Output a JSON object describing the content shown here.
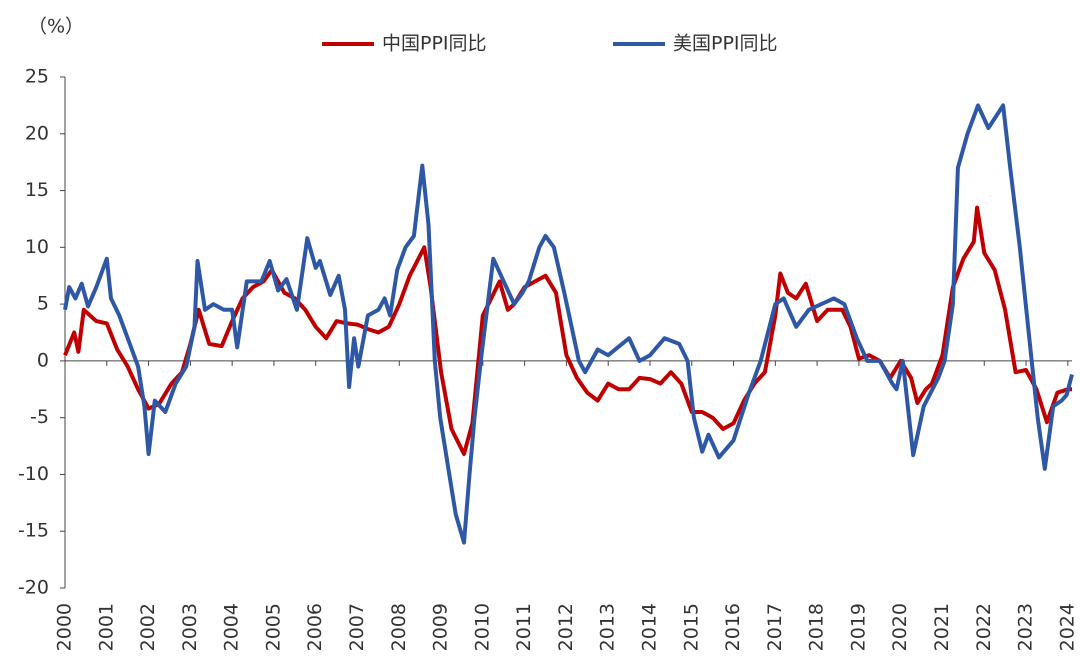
{
  "chart_data": {
    "type": "line",
    "unit_label": "（%）",
    "xlim": [
      2000,
      2024.1
    ],
    "ylim": [
      -20,
      25
    ],
    "yticks": [
      -20,
      -15,
      -10,
      -5,
      0,
      5,
      10,
      15,
      20,
      25
    ],
    "xticks": [
      2000,
      2001,
      2002,
      2003,
      2004,
      2005,
      2006,
      2007,
      2008,
      2009,
      2010,
      2011,
      2012,
      2013,
      2014,
      2015,
      2016,
      2017,
      2018,
      2019,
      2020,
      2021,
      2022,
      2023,
      2024
    ],
    "grid": false,
    "series": [
      {
        "name": "中国PPI同比",
        "color": "#c00000",
        "x": [
          2000.0,
          2000.22,
          2000.32,
          2000.45,
          2000.75,
          2001.0,
          2001.25,
          2001.5,
          2001.75,
          2002.0,
          2002.25,
          2002.55,
          2002.8,
          2003.0,
          2003.2,
          2003.45,
          2003.75,
          2004.0,
          2004.25,
          2004.5,
          2004.75,
          2004.95,
          2005.25,
          2005.5,
          2005.75,
          2006.0,
          2006.25,
          2006.5,
          2006.75,
          2007.0,
          2007.25,
          2007.5,
          2007.75,
          2008.0,
          2008.25,
          2008.6,
          2008.75,
          2009.0,
          2009.25,
          2009.55,
          2009.75,
          2010.0,
          2010.4,
          2010.6,
          2010.75,
          2011.0,
          2011.25,
          2011.5,
          2011.75,
          2012.0,
          2012.25,
          2012.5,
          2012.75,
          2013.0,
          2013.25,
          2013.5,
          2013.75,
          2014.0,
          2014.25,
          2014.5,
          2014.75,
          2015.0,
          2015.25,
          2015.5,
          2015.75,
          2016.0,
          2016.25,
          2016.5,
          2016.75,
          2017.0,
          2017.12,
          2017.3,
          2017.5,
          2017.73,
          2018.0,
          2018.25,
          2018.6,
          2018.8,
          2019.0,
          2019.25,
          2019.5,
          2019.75,
          2020.0,
          2020.25,
          2020.4,
          2020.6,
          2020.75,
          2021.0,
          2021.25,
          2021.5,
          2021.75,
          2021.83,
          2022.0,
          2022.25,
          2022.5,
          2022.75,
          2023.0,
          2023.25,
          2023.5,
          2023.75,
          2024.0,
          2024.1
        ],
        "values": [
          0.5,
          2.5,
          0.8,
          4.5,
          3.5,
          3.3,
          1,
          -0.5,
          -2.5,
          -4.2,
          -3.8,
          -2,
          -1,
          1.5,
          4.5,
          1.5,
          1.3,
          3.5,
          5.5,
          6.5,
          7,
          8,
          6,
          5.5,
          4.5,
          3,
          2,
          3.5,
          3.3,
          3.2,
          2.8,
          2.5,
          3,
          5,
          7.5,
          10,
          6.5,
          -1,
          -6,
          -8.2,
          -5.5,
          4,
          7,
          4.5,
          5,
          6.5,
          7,
          7.5,
          6,
          0.5,
          -1.5,
          -2.8,
          -3.5,
          -2,
          -2.5,
          -2.5,
          -1.5,
          -1.6,
          -2,
          -1,
          -2,
          -4.5,
          -4.5,
          -5,
          -6,
          -5.5,
          -3.5,
          -2,
          -1,
          4,
          7.7,
          6,
          5.5,
          6.8,
          3.5,
          4.5,
          4.5,
          3,
          0.2,
          0.5,
          0,
          -1.5,
          0,
          -1.5,
          -3.7,
          -2.5,
          -2,
          0.5,
          6.5,
          9,
          10.5,
          13.5,
          9.5,
          8,
          4.5,
          -1,
          -0.8,
          -2.5,
          -5.4,
          -2.8,
          -2.5,
          -2.5
        ]
      },
      {
        "name": "美国PPI同比",
        "color": "#2e58a6",
        "x": [
          2000.0,
          2000.1,
          2000.25,
          2000.4,
          2000.55,
          2000.75,
          2001.0,
          2001.1,
          2001.3,
          2001.55,
          2001.75,
          2001.9,
          2002.0,
          2002.15,
          2002.4,
          2002.65,
          2002.9,
          2003.1,
          2003.17,
          2003.35,
          2003.55,
          2003.8,
          2004.0,
          2004.12,
          2004.35,
          2004.7,
          2004.9,
          2005.1,
          2005.3,
          2005.55,
          2005.8,
          2006.0,
          2006.1,
          2006.35,
          2006.55,
          2006.7,
          2006.8,
          2006.92,
          2007.02,
          2007.25,
          2007.5,
          2007.65,
          2007.78,
          2007.95,
          2008.15,
          2008.35,
          2008.55,
          2008.7,
          2008.85,
          2008.98,
          2009.35,
          2009.55,
          2009.68,
          2009.8,
          2009.95,
          2010.15,
          2010.25,
          2010.5,
          2010.75,
          2010.95,
          2011.1,
          2011.35,
          2011.5,
          2011.7,
          2011.95,
          2012.3,
          2012.45,
          2012.75,
          2013.0,
          2013.5,
          2013.75,
          2014.0,
          2014.35,
          2014.7,
          2014.9,
          2015.05,
          2015.25,
          2015.4,
          2015.65,
          2016.0,
          2016.35,
          2016.65,
          2017.0,
          2017.2,
          2017.5,
          2017.8,
          2018.4,
          2018.65,
          2018.95,
          2019.2,
          2019.5,
          2019.8,
          2019.9,
          2020.05,
          2020.3,
          2020.55,
          2020.9,
          2021.05,
          2021.25,
          2021.37,
          2021.6,
          2021.85,
          2022.1,
          2022.45,
          2022.62,
          2022.85,
          2023.05,
          2023.28,
          2023.45,
          2023.65,
          2023.85,
          2023.97,
          2024.1
        ],
        "values": [
          4.5,
          6.5,
          5.5,
          6.8,
          4.8,
          6.5,
          9,
          5.5,
          4,
          1.5,
          -0.5,
          -4,
          -8.2,
          -3.5,
          -4.5,
          -2,
          -0.5,
          3,
          8.8,
          4.5,
          5,
          4.5,
          4.5,
          1.2,
          7,
          7,
          8.8,
          6.2,
          7.2,
          4.5,
          10.8,
          8.2,
          8.8,
          5.8,
          7.5,
          4.5,
          -2.3,
          2,
          -0.5,
          4,
          4.5,
          5.5,
          4,
          8,
          10,
          11,
          17.2,
          12,
          0,
          -5,
          -13.5,
          -16,
          -10,
          -5,
          0,
          6,
          9,
          7,
          5,
          6,
          7,
          10,
          11,
          10,
          6,
          0,
          -1,
          1,
          0.5,
          2,
          0,
          0.5,
          2,
          1.5,
          0,
          -5,
          -8,
          -6.5,
          -8.5,
          -7,
          -3,
          0,
          5,
          5.5,
          3,
          4.5,
          5.5,
          5,
          2,
          0,
          0,
          -2,
          -2.5,
          0,
          -8.3,
          -4,
          -1.5,
          0,
          5,
          17,
          20,
          22.5,
          20.5,
          22.5,
          17,
          10,
          3,
          -5,
          -9.5,
          -4,
          -3.5,
          -3,
          -1.2
        ]
      }
    ]
  }
}
